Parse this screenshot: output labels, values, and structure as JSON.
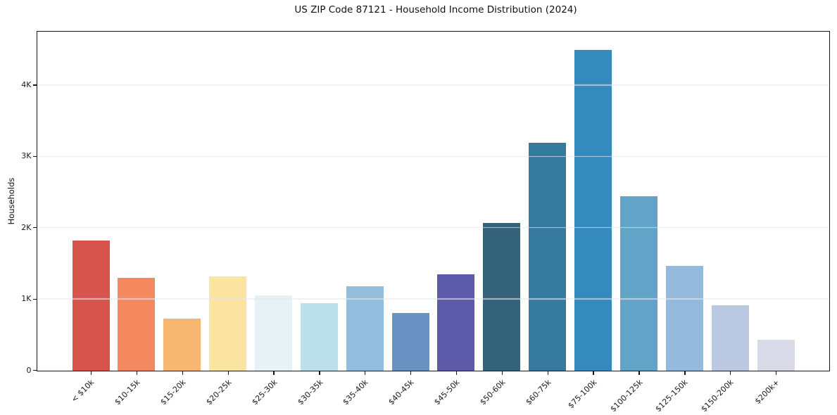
{
  "title": "US ZIP Code 87121 - Household Income Distribution (2024)",
  "chart_data": {
    "type": "bar",
    "title": "US ZIP Code 87121 - Household Income Distribution (2024)",
    "xlabel": "",
    "ylabel": "Households",
    "categories": [
      "< $10k",
      "$10-15k",
      "$15-20k",
      "$20-25k",
      "$25-30k",
      "$30-35k",
      "$35-40k",
      "$40-45k",
      "$45-50k",
      "$50-60k",
      "$60-75k",
      "$75-100k",
      "$100-125k",
      "$125-150k",
      "$150-200k",
      "$200k+"
    ],
    "values": [
      1830,
      1300,
      730,
      1320,
      1060,
      950,
      1180,
      810,
      1350,
      2070,
      3200,
      4500,
      2450,
      1470,
      920,
      430
    ],
    "bar_colors": [
      "#d7554d",
      "#f4895f",
      "#f8b771",
      "#fbe3a0",
      "#e6f2f6",
      "#bcdfec",
      "#93bddc",
      "#6c92c4",
      "#5d5ba9",
      "#34627b",
      "#377a9f",
      "#3489bd",
      "#61a4c8",
      "#93badb",
      "#bac8e1",
      "#d8dae8"
    ],
    "ylim": [
      0,
      4745
    ],
    "yticks": [
      {
        "value": 0,
        "label": "0"
      },
      {
        "value": 1000,
        "label": "1K"
      },
      {
        "value": 2000,
        "label": "2K"
      },
      {
        "value": 3000,
        "label": "3K"
      },
      {
        "value": 4000,
        "label": "4K"
      }
    ],
    "grid": "horizontal",
    "legend": "none",
    "background_color": "#ffffff",
    "spine_color": "#151515",
    "gridline_color": "#e4e7ef",
    "text_color": "#1a1a1a"
  }
}
